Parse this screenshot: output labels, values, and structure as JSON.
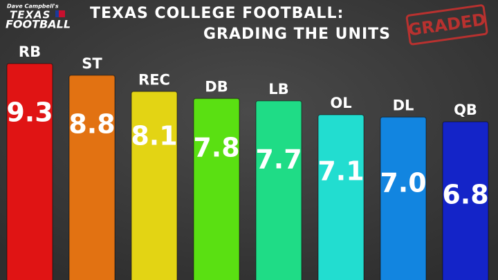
{
  "chart_data": {
    "type": "bar",
    "title": [
      "TEXAS COLLEGE FOOTBALL:",
      "GRADING THE UNITS"
    ],
    "logo": [
      "Dave Campbell's",
      "TEXAS",
      "FOOTBALL"
    ],
    "stamp": "GRADED",
    "categories": [
      "RB",
      "ST",
      "REC",
      "DB",
      "LB",
      "OL",
      "DL",
      "QB"
    ],
    "values": [
      9.3,
      8.8,
      8.1,
      7.8,
      7.7,
      7.1,
      7.0,
      6.8
    ],
    "value_labels": [
      "9.3",
      "8.8",
      "8.1",
      "7.8",
      "7.7",
      "7.1",
      "7.0",
      "6.8"
    ],
    "colors": [
      "#e01414",
      "#e27212",
      "#e3d414",
      "#5ae012",
      "#1fdc86",
      "#22ddd0",
      "#1285e0",
      "#1424c8"
    ]
  }
}
